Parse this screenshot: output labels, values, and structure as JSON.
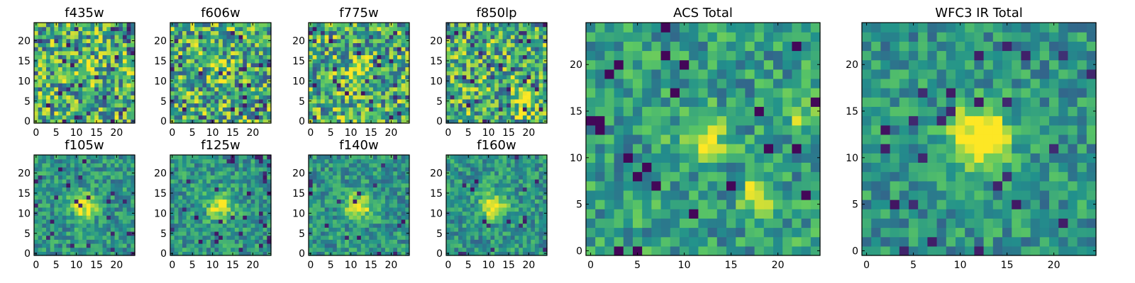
{
  "chart_data": [
    {
      "type": "heatmap",
      "title": "f435w",
      "xlim": [
        0,
        25
      ],
      "ylim": [
        0,
        25
      ],
      "xticks": [
        "0",
        "5",
        "10",
        "15",
        "20"
      ],
      "yticks": [
        "0",
        "5",
        "10",
        "15",
        "20"
      ],
      "grid": false,
      "legend": "none",
      "pattern": "noise",
      "blob_center": [
        12,
        12
      ],
      "blob_strength": 0.2
    },
    {
      "type": "heatmap",
      "title": "f606w",
      "xlim": [
        0,
        25
      ],
      "ylim": [
        0,
        25
      ],
      "xticks": [
        "0",
        "5",
        "10",
        "15",
        "20"
      ],
      "yticks": [
        "0",
        "5",
        "10",
        "15",
        "20"
      ],
      "grid": false,
      "legend": "none",
      "pattern": "noise",
      "blob_center": [
        12,
        12
      ],
      "blob_strength": 0.2
    },
    {
      "type": "heatmap",
      "title": "f775w",
      "xlim": [
        0,
        25
      ],
      "ylim": [
        0,
        25
      ],
      "xticks": [
        "0",
        "5",
        "10",
        "15",
        "20"
      ],
      "yticks": [
        "0",
        "5",
        "10",
        "15",
        "20"
      ],
      "grid": false,
      "legend": "none",
      "pattern": "noise",
      "blob_center": [
        12,
        13
      ],
      "blob_strength": 0.35
    },
    {
      "type": "heatmap",
      "title": "f850lp",
      "xlim": [
        0,
        25
      ],
      "ylim": [
        0,
        25
      ],
      "xticks": [
        "0",
        "5",
        "10",
        "15",
        "20"
      ],
      "yticks": [
        "0",
        "5",
        "10",
        "15",
        "20"
      ],
      "grid": false,
      "legend": "none",
      "pattern": "noise",
      "blob_center": [
        19,
        5
      ],
      "blob_strength": 0.35
    },
    {
      "type": "heatmap",
      "title": "f105w",
      "xlim": [
        0,
        25
      ],
      "ylim": [
        0,
        25
      ],
      "xticks": [
        "0",
        "5",
        "10",
        "15",
        "20"
      ],
      "yticks": [
        "0",
        "5",
        "10",
        "15",
        "20"
      ],
      "grid": false,
      "legend": "none",
      "pattern": "blob",
      "blob_center": [
        12,
        12
      ],
      "blob_strength": 0.5
    },
    {
      "type": "heatmap",
      "title": "f125w",
      "xlim": [
        0,
        25
      ],
      "ylim": [
        0,
        25
      ],
      "xticks": [
        "0",
        "5",
        "10",
        "15",
        "20"
      ],
      "yticks": [
        "0",
        "5",
        "10",
        "15",
        "20"
      ],
      "grid": false,
      "legend": "none",
      "pattern": "blob",
      "blob_center": [
        12,
        12
      ],
      "blob_strength": 0.5
    },
    {
      "type": "heatmap",
      "title": "f140w",
      "xlim": [
        0,
        25
      ],
      "ylim": [
        0,
        25
      ],
      "xticks": [
        "0",
        "5",
        "10",
        "15",
        "20"
      ],
      "yticks": [
        "0",
        "5",
        "10",
        "15",
        "20"
      ],
      "grid": false,
      "legend": "none",
      "pattern": "blob",
      "blob_center": [
        12,
        12
      ],
      "blob_strength": 0.5
    },
    {
      "type": "heatmap",
      "title": "f160w",
      "xlim": [
        0,
        25
      ],
      "ylim": [
        0,
        25
      ],
      "xticks": [
        "0",
        "5",
        "10",
        "15",
        "20"
      ],
      "yticks": [
        "0",
        "5",
        "10",
        "15",
        "20"
      ],
      "grid": false,
      "legend": "none",
      "pattern": "blob",
      "blob_center": [
        11,
        12
      ],
      "blob_strength": 0.5
    },
    {
      "type": "heatmap",
      "title": "ACS Total",
      "xlim": [
        0,
        25
      ],
      "ylim": [
        0,
        25
      ],
      "xticks": [
        "0",
        "5",
        "10",
        "15",
        "20"
      ],
      "yticks": [
        "0",
        "5",
        "10",
        "15",
        "20"
      ],
      "grid": false,
      "legend": "none",
      "pattern": "acs",
      "blob_center": [
        12,
        12
      ],
      "blob_strength": 0.45
    },
    {
      "type": "heatmap",
      "title": "WFC3 IR Total",
      "xlim": [
        0,
        25
      ],
      "ylim": [
        0,
        25
      ],
      "xticks": [
        "0",
        "5",
        "10",
        "15",
        "20"
      ],
      "yticks": [
        "0",
        "5",
        "10",
        "15",
        "20"
      ],
      "grid": false,
      "legend": "none",
      "pattern": "blob",
      "blob_center": [
        12,
        12
      ],
      "blob_strength": 0.7
    }
  ],
  "colormap": [
    "#440154",
    "#3b528b",
    "#21918c",
    "#5ec962",
    "#fde725"
  ]
}
